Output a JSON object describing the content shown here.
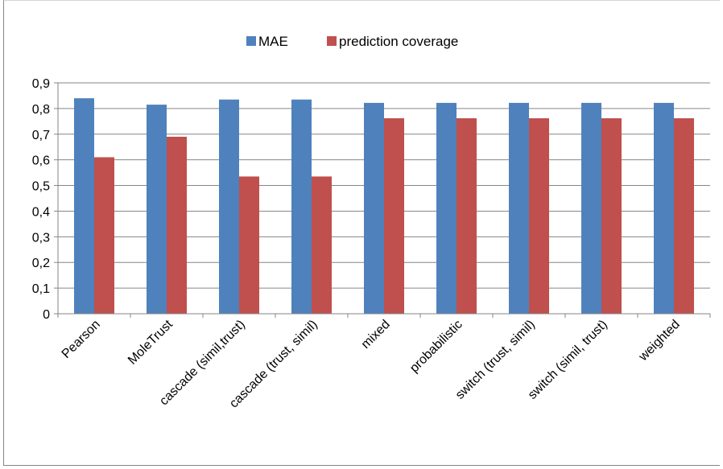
{
  "chart_data": {
    "type": "bar",
    "title": "",
    "xlabel": "",
    "ylabel": "",
    "categories": [
      "Pearson",
      "MoleTrust",
      "cascade (simil,trust)",
      "cascade (trust, simil)",
      "mixed",
      "probabilistic",
      "switch (trust, simil)",
      "switch (simil, trust)",
      "weighted"
    ],
    "series": [
      {
        "name": "MAE",
        "color": "#4f81bd",
        "values": [
          0.84,
          0.815,
          0.835,
          0.835,
          0.822,
          0.822,
          0.822,
          0.822,
          0.822
        ]
      },
      {
        "name": "prediction coverage",
        "color": "#c0504d",
        "values": [
          0.61,
          0.69,
          0.535,
          0.535,
          0.762,
          0.762,
          0.762,
          0.762,
          0.762
        ]
      }
    ],
    "ylim": [
      0,
      0.9
    ],
    "yticks": [
      "0",
      "0,1",
      "0,2",
      "0,3",
      "0,4",
      "0,5",
      "0,6",
      "0,7",
      "0,8",
      "0,9"
    ],
    "grid": true,
    "legend": "top"
  }
}
